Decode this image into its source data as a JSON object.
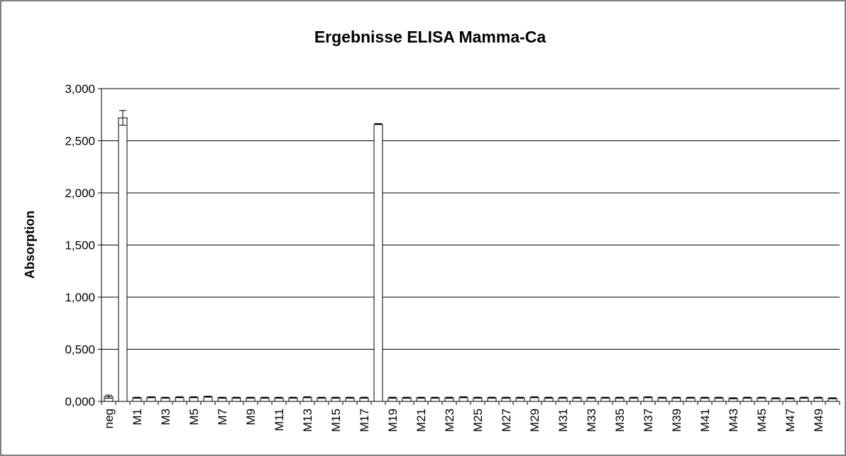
{
  "chart_data": {
    "type": "bar",
    "title": "Ergebnisse ELISA Mamma-Ca",
    "y_label": "Absorption",
    "categories": [
      "neg",
      null,
      "M1",
      null,
      "M3",
      null,
      "M5",
      null,
      "M7",
      null,
      "M9",
      null,
      "M11",
      null,
      "M13",
      null,
      "M15",
      null,
      "M17",
      null,
      "M19",
      null,
      "M21",
      null,
      "M23",
      null,
      "M25",
      null,
      "M27",
      null,
      "M29",
      null,
      "M31",
      null,
      "M33",
      null,
      "M35",
      null,
      "M37",
      null,
      "M39",
      null,
      "M41",
      null,
      "M43",
      null,
      "M45",
      null,
      "M47",
      null,
      "M49",
      null
    ],
    "values": [
      0.045,
      2.72,
      0.035,
      0.04,
      0.035,
      0.04,
      0.04,
      0.045,
      0.035,
      0.035,
      0.035,
      0.035,
      0.035,
      0.035,
      0.04,
      0.035,
      0.035,
      0.035,
      0.035,
      2.66,
      0.035,
      0.035,
      0.035,
      0.035,
      0.035,
      0.04,
      0.035,
      0.035,
      0.035,
      0.035,
      0.04,
      0.035,
      0.035,
      0.035,
      0.035,
      0.035,
      0.035,
      0.035,
      0.04,
      0.035,
      0.035,
      0.035,
      0.035,
      0.035,
      0.03,
      0.035,
      0.035,
      0.03,
      0.03,
      0.035,
      0.035,
      0.03
    ],
    "errors": [
      0.015,
      0.07,
      0.005,
      0.005,
      0.005,
      0.005,
      0.005,
      0.005,
      0.005,
      0.005,
      0.005,
      0.005,
      0.005,
      0.005,
      0.005,
      0.005,
      0.005,
      0.005,
      0.005,
      0.005,
      0.005,
      0.005,
      0.005,
      0.005,
      0.005,
      0.005,
      0.005,
      0.005,
      0.005,
      0.005,
      0.005,
      0.005,
      0.005,
      0.005,
      0.005,
      0.005,
      0.005,
      0.005,
      0.005,
      0.005,
      0.005,
      0.005,
      0.005,
      0.005,
      0.005,
      0.005,
      0.005,
      0.005,
      0.005,
      0.005,
      0.005,
      0.005
    ],
    "color": "#ffffff",
    "ylim": [
      0,
      3
    ],
    "yticks": [
      {
        "value": 0,
        "label": "0,000"
      },
      {
        "value": 0.5,
        "label": "0,500"
      },
      {
        "value": 1,
        "label": "1,000"
      },
      {
        "value": 1.5,
        "label": "1,500"
      },
      {
        "value": 2,
        "label": "2,000"
      },
      {
        "value": 2.5,
        "label": "2,500"
      },
      {
        "value": 3,
        "label": "3,000"
      }
    ],
    "grid": true
  }
}
